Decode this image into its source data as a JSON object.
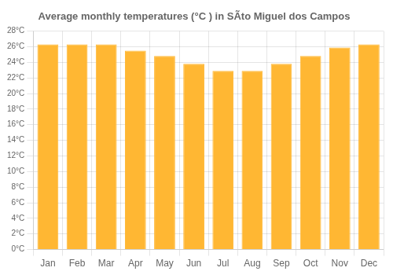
{
  "chart_data": {
    "type": "bar",
    "title": "Average monthly temperatures (°C ) in SÃto Miguel dos Campos",
    "categories": [
      "Jan",
      "Feb",
      "Mar",
      "Apr",
      "May",
      "Jun",
      "Jul",
      "Aug",
      "Sep",
      "Oct",
      "Nov",
      "Dec"
    ],
    "values": [
      26.3,
      26.3,
      26.3,
      25.5,
      24.8,
      23.8,
      22.9,
      22.9,
      23.8,
      24.8,
      25.9,
      26.3
    ],
    "color": "#FFB733",
    "ylim": [
      0,
      28
    ],
    "yticks": [
      {
        "value": 0,
        "label": "0°C"
      },
      {
        "value": 2,
        "label": "2°C"
      },
      {
        "value": 4,
        "label": "4°C"
      },
      {
        "value": 6,
        "label": "6°C"
      },
      {
        "value": 8,
        "label": "8°C"
      },
      {
        "value": 10,
        "label": "10°C"
      },
      {
        "value": 12,
        "label": "12°C"
      },
      {
        "value": 14,
        "label": "14°C"
      },
      {
        "value": 16,
        "label": "16°C"
      },
      {
        "value": 18,
        "label": "18°C"
      },
      {
        "value": 20,
        "label": "20°C"
      },
      {
        "value": 22,
        "label": "22°C"
      },
      {
        "value": 24,
        "label": "24°C"
      },
      {
        "value": 26,
        "label": "26°C"
      },
      {
        "value": 28,
        "label": "28°C"
      }
    ],
    "grid": true
  }
}
